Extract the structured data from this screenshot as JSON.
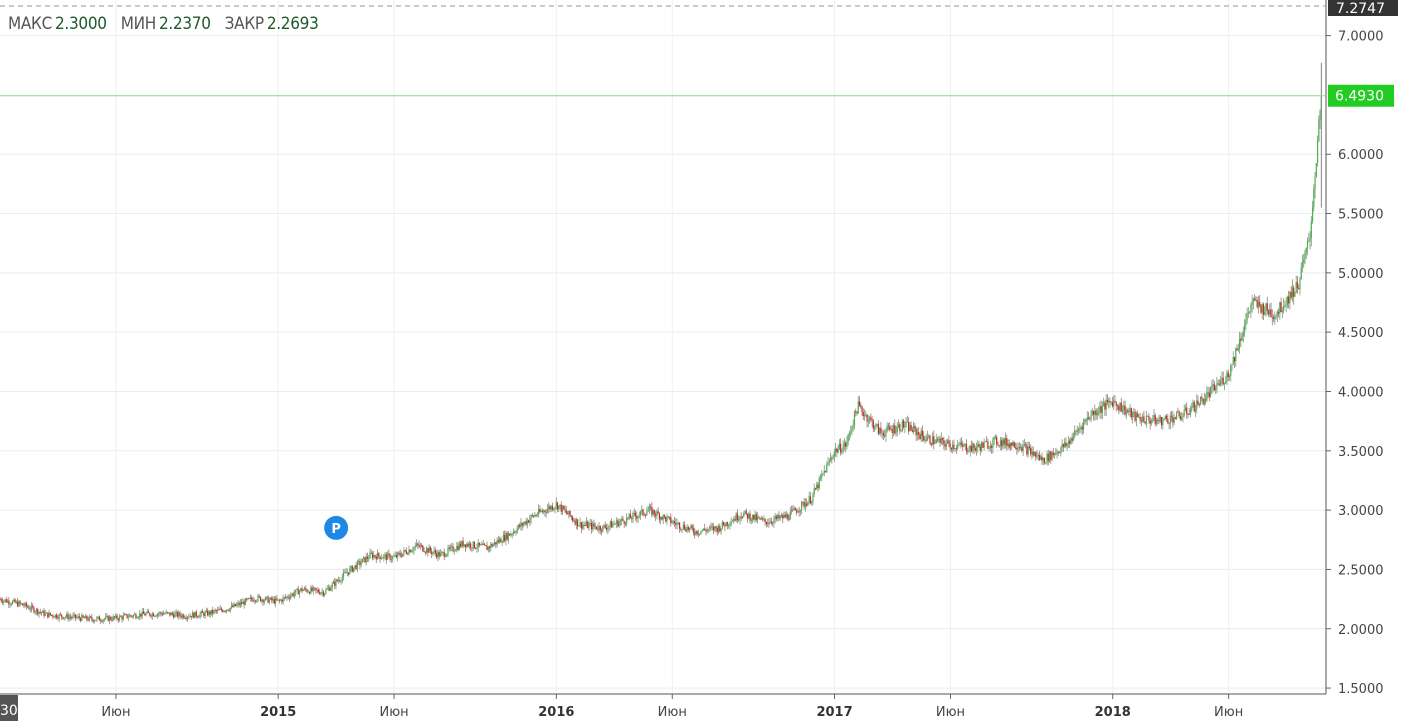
{
  "legend": {
    "high_label": "МАКС",
    "high_value": "2.3000",
    "low_label": "МИН",
    "low_value": "2.2370",
    "close_label": "ЗАКР",
    "close_value": "2.2693"
  },
  "markers": {
    "top_price": "7.2747",
    "current_price": "6.4930",
    "left_cut_label": "30",
    "event_badge": "P"
  },
  "colors": {
    "up": "#4caf50",
    "down": "#c62828",
    "current_line": "#7ee07e",
    "current_badge": "#22cc22",
    "event_badge": "#1e88e5"
  },
  "chart_data": {
    "type": "candlestick",
    "y_ticks": [
      "1.5000",
      "2.0000",
      "2.5000",
      "3.0000",
      "3.5000",
      "4.0000",
      "4.5000",
      "5.0000",
      "5.5000",
      "6.0000",
      "7.0000"
    ],
    "x_ticks": [
      {
        "label": "Июн",
        "year": false
      },
      {
        "label": "2015",
        "year": true
      },
      {
        "label": "Июн",
        "year": false
      },
      {
        "label": "2016",
        "year": true
      },
      {
        "label": "Июн",
        "year": false
      },
      {
        "label": "2017",
        "year": true
      },
      {
        "label": "Июн",
        "year": false
      },
      {
        "label": "2018",
        "year": true
      },
      {
        "label": "Июн",
        "year": false
      }
    ],
    "x_tick_months": [
      5,
      12,
      17,
      24,
      29,
      36,
      41,
      48,
      53
    ],
    "ylim": [
      1.45,
      7.3
    ],
    "xlim_months": [
      0.0,
      57.2
    ],
    "price_path": [
      [
        0.0,
        2.25
      ],
      [
        1.0,
        2.2
      ],
      [
        2.0,
        2.12
      ],
      [
        3.0,
        2.1
      ],
      [
        4.0,
        2.08
      ],
      [
        5.0,
        2.09
      ],
      [
        6.0,
        2.12
      ],
      [
        7.0,
        2.13
      ],
      [
        8.0,
        2.11
      ],
      [
        9.0,
        2.13
      ],
      [
        10.0,
        2.18
      ],
      [
        11.0,
        2.26
      ],
      [
        12.0,
        2.23
      ],
      [
        13.0,
        2.33
      ],
      [
        14.0,
        2.31
      ],
      [
        15.0,
        2.48
      ],
      [
        16.0,
        2.62
      ],
      [
        17.0,
        2.6
      ],
      [
        18.0,
        2.7
      ],
      [
        19.0,
        2.62
      ],
      [
        20.0,
        2.72
      ],
      [
        21.0,
        2.68
      ],
      [
        22.0,
        2.8
      ],
      [
        23.0,
        2.95
      ],
      [
        24.0,
        3.05
      ],
      [
        25.0,
        2.88
      ],
      [
        26.0,
        2.85
      ],
      [
        27.0,
        2.92
      ],
      [
        28.0,
        3.0
      ],
      [
        29.0,
        2.9
      ],
      [
        30.0,
        2.82
      ],
      [
        31.0,
        2.85
      ],
      [
        32.0,
        2.97
      ],
      [
        33.0,
        2.9
      ],
      [
        34.0,
        2.95
      ],
      [
        35.0,
        3.1
      ],
      [
        36.0,
        3.5
      ],
      [
        36.5,
        3.55
      ],
      [
        37.0,
        3.88
      ],
      [
        38.0,
        3.65
      ],
      [
        39.0,
        3.72
      ],
      [
        40.0,
        3.6
      ],
      [
        41.0,
        3.55
      ],
      [
        42.0,
        3.52
      ],
      [
        43.0,
        3.58
      ],
      [
        44.0,
        3.55
      ],
      [
        45.0,
        3.42
      ],
      [
        46.0,
        3.55
      ],
      [
        47.0,
        3.8
      ],
      [
        48.0,
        3.92
      ],
      [
        49.0,
        3.78
      ],
      [
        50.0,
        3.75
      ],
      [
        51.0,
        3.8
      ],
      [
        52.0,
        3.95
      ],
      [
        53.0,
        4.15
      ],
      [
        54.0,
        4.75
      ],
      [
        55.0,
        4.65
      ],
      [
        56.0,
        4.9
      ],
      [
        56.5,
        5.3
      ],
      [
        57.0,
        6.49
      ]
    ],
    "event_badge_month": 14.5,
    "event_badge_value": 2.85
  }
}
